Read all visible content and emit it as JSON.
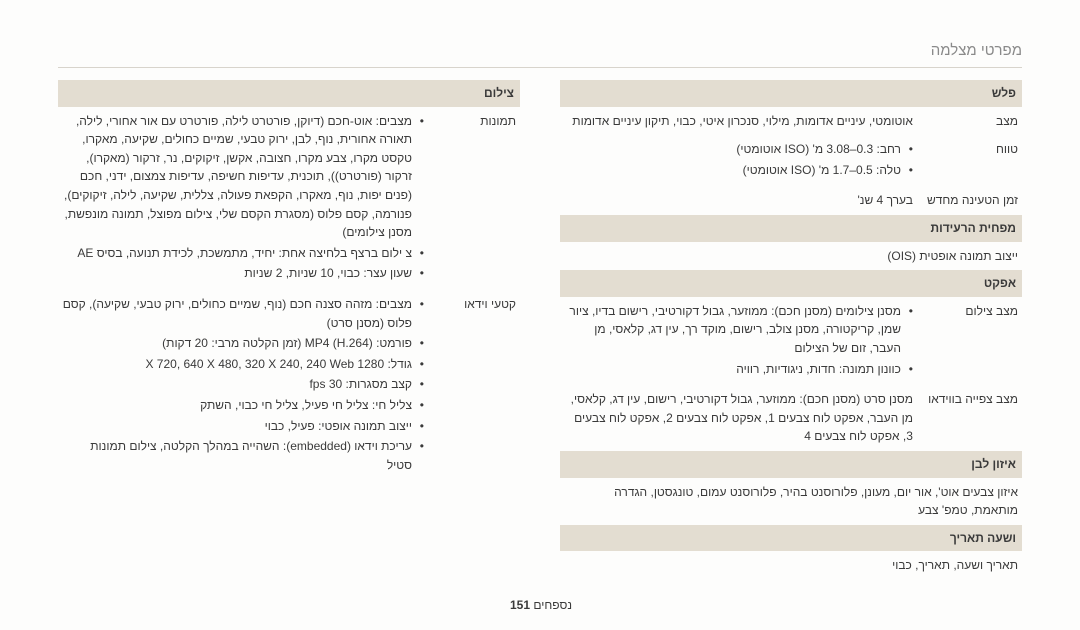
{
  "title": "מפרטי מצלמה",
  "footer": {
    "label": "נספחים",
    "page": "151"
  },
  "right": {
    "sections": [
      {
        "type": "section",
        "label": "פלש"
      },
      {
        "type": "row",
        "label": "מצב",
        "value_plain": "אוטומטי, עיניים אדומות, מילוי, סנכרון איטי, כבוי, תיקון עיניים אדומות"
      },
      {
        "type": "row",
        "label": "טווח",
        "value_list": [
          "רחב: 0.3–3.08 מ' (ISO אוטומטי)",
          "טלה: 0.5–1.7 מ' (ISO אוטומטי)"
        ]
      },
      {
        "type": "row",
        "label": "זמן הטעינה מחדש",
        "value_plain": "בערך 4 שנ'"
      },
      {
        "type": "section",
        "label": "מפחית הרעידות"
      },
      {
        "type": "row",
        "label": "",
        "value_plain": "ייצוב תמונה אופטית (OIS)"
      },
      {
        "type": "section",
        "label": "אפקט"
      },
      {
        "type": "row",
        "label": "מצב צילום",
        "value_list": [
          "מסנן צילומים (מסנן חכם): ממוזער, גבול דקורטיבי, רישום בדיו, ציור שמן, קריקטורה, מסנן צולב, רישום, מוקד רך, עין דג, קלאסי, מן העבר, זום של הצילום",
          "כוונון תמונה: חדות, ניגודיות, רוויה"
        ]
      },
      {
        "type": "row",
        "label": "מצב צפייה בווידאו",
        "value_plain": "מסנן סרט (מסנן חכם): ממוזער, גבול דקורטיבי, רישום, עין דג, קלאסי, מן העבר, אפקט לוח צבעים 1, אפקט לוח צבעים 2, אפקט לוח צבעים 3, אפקט לוח צבעים 4"
      },
      {
        "type": "section",
        "label": "איזון לבן"
      },
      {
        "type": "row",
        "label": "",
        "value_plain": "איזון צבעים אוט', אור יום, מעונן, פלורוסנט בהיר, פלורוסנט עמום, טונגסטן, הגדרה מותאמת, טמפ' צבע"
      },
      {
        "type": "section",
        "label": "ושעה תאריך"
      },
      {
        "type": "row",
        "label": "",
        "value_plain": "תאריך ושעה, תאריך, כבוי"
      }
    ]
  },
  "left": {
    "sections": [
      {
        "type": "section",
        "label": "צילום"
      },
      {
        "type": "row",
        "label": "תמונות",
        "value_list": [
          "מצבים: אוט-חכם (דיוקן, פורטרט לילה, פורטרט עם אור אחורי, לילה, תאורה אחורית, נוף, לבן, ירוק טבעי, שמיים כחולים, שקיעה, מאקרו, טקסט מקרו, צבע מקרו, חצובה, אקשן, זיקוקים, נר, זרקור (מאקרו), זרקור (פורטרט)), תוכנית, עדיפות חשיפה, עדיפות צמצום, ידני, חכם (פנים יפות, נוף, מאקרו, הקפאת פעולה, צללית, שקיעה, לילה, זיקוקים), פנורמה, קסם פלוס (מסגרת הקסם שלי, צילום מפוצל, תמונה מונפשת, מסנן צילומים)",
          "צ ילום ברצף בלחיצה אחת: יחיד, מתמשכת, לכידת תנועה, בסיס AE",
          "שעון עצר: כבוי, 10 שניות, 2 שניות"
        ]
      },
      {
        "type": "row",
        "label": "קטעי וידאו",
        "value_list": [
          "מצבים: מזהה סצנה חכם (נוף, שמיים כחולים, ירוק טבעי, שקיעה), קסם פלוס (מסנן סרט)",
          "פורמט: MP4 (H.264) (זמן הקלטה מרבי: 20 דקות)",
          "גודל: 1280 X 720, 640 X 480, 320 X 240, 240 Web",
          "קצב מסגרות: 30 fps",
          "צליל חי: צליל חי פעיל, צליל חי כבוי, השתק",
          "ייצוב תמונה אופטי: פעיל, כבוי",
          "עריכת וידאו (embedded): השהייה במהלך הקלטה, צילום תמונות סטיל"
        ]
      }
    ]
  }
}
